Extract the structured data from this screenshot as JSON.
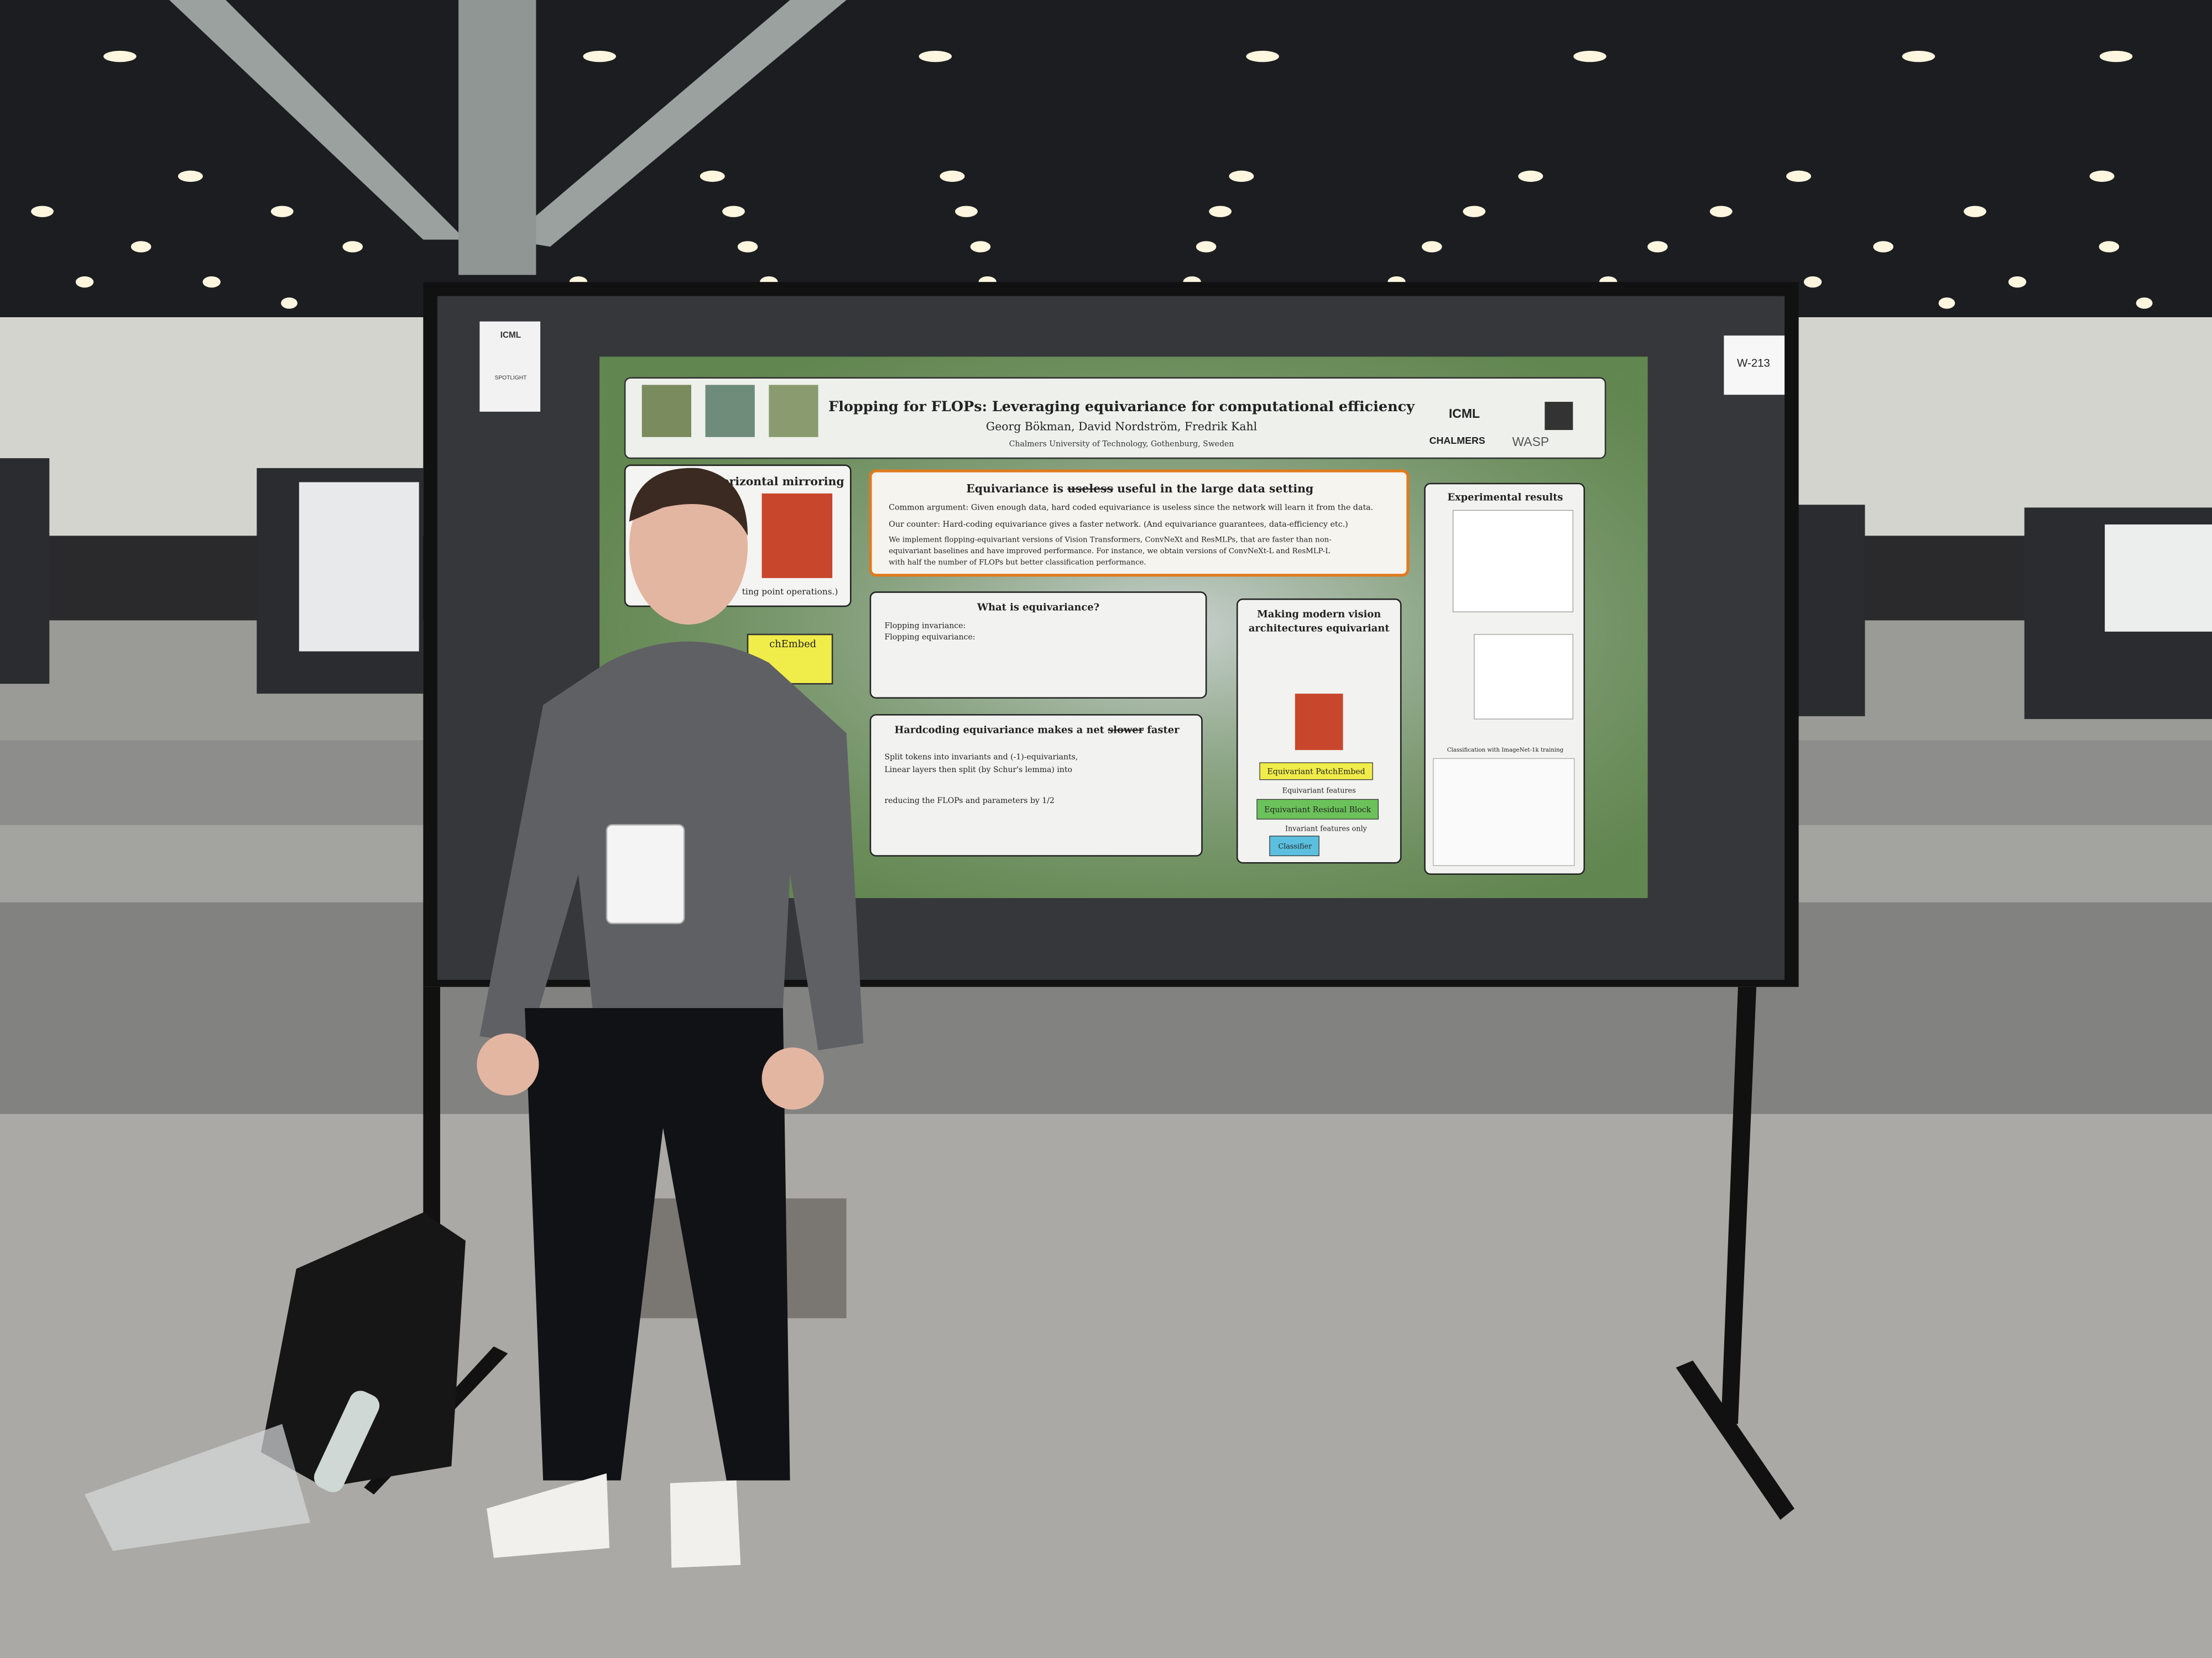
{
  "board": {
    "label": "W-213",
    "tag_logo": "ICML",
    "tag_text": "SPOTLIGHT"
  },
  "poster": {
    "title": "Flopping for FLOPs: Leveraging equivariance for computational efficiency",
    "authors": "Georg Bökman, David Nordström, Fredrik Kahl",
    "affiliation": "Chalmers University of Technology, Gothenburg, Sweden",
    "logos": [
      "ICML",
      "CHALMERS",
      "WASP"
    ],
    "left_box": {
      "heading": "orizontal mirroring",
      "footer": "ting point operations.)",
      "side": "chEmbed"
    },
    "claim": {
      "heading": {
        "before": "Equivariance is ",
        "struck": "useless",
        "after": " useful in the large data setting"
      },
      "common_argument": "Common argument: Given enough data, hard coded equivariance is useless since the network will learn it from the data.",
      "counter": "Our counter: Hard-coding equivariance gives a faster network. (And equivariance guarantees, data-efficiency etc.)",
      "lines": [
        "We implement flopping-equivariant versions of Vision Transformers, ConvNeXt and ResMLPs, that are faster than non-",
        "equivariant baselines and have improved performance. For instance, we obtain versions of ConvNeXt-L and ResMLP-L",
        "with half the number of FLOPs but better classification performance."
      ]
    },
    "what": {
      "heading": "What is equivariance?",
      "lines": [
        "Flopping invariance:",
        "Flopping equivariance:"
      ]
    },
    "hardcoding": {
      "heading": {
        "before": "Hardcoding equivariance makes a net ",
        "struck": "slower",
        "after": " faster"
      },
      "lines": [
        "Split tokens into invariants and (-1)-equivariants,",
        "Linear layers then split (by Schur's lemma) into",
        "reducing the FLOPs and parameters by 1/2"
      ]
    },
    "modern": {
      "heading": [
        "Making modern vision",
        "architectures equivariant"
      ],
      "diagram": [
        "Equivariant PatchEmbed",
        "Equivariant features",
        "Equivariant Residual Block",
        "Invariant features only",
        "Classifier"
      ]
    },
    "results": {
      "heading": "Experimental results",
      "table_caption": "Classification with ImageNet-1k training"
    }
  }
}
